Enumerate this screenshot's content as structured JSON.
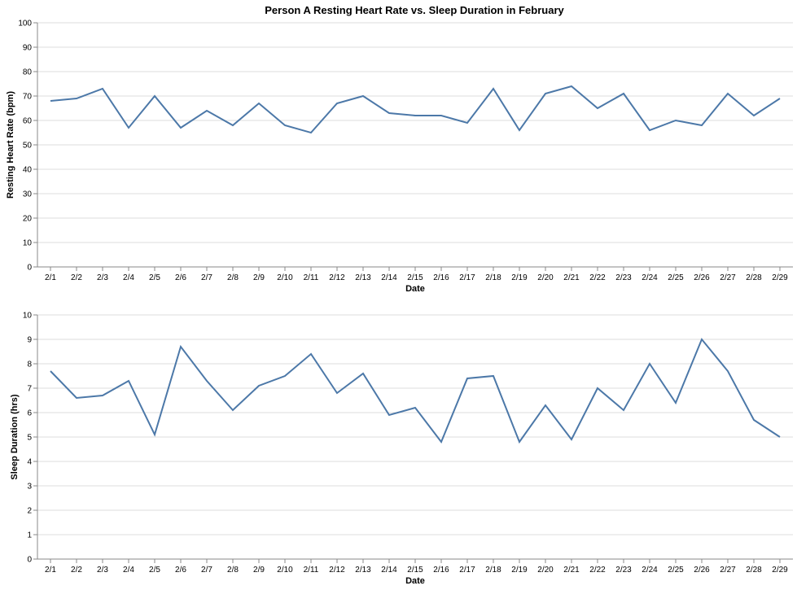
{
  "chart_data": {
    "title": "Person A Resting Heart Rate vs. Sleep Duration in February",
    "series_color": "#4c78a8",
    "charts": [
      {
        "type": "line",
        "xlabel": "Date",
        "ylabel": "Resting Heart Rate (bpm)",
        "ylim": [
          0,
          100
        ],
        "yticks": [
          "0",
          "10",
          "20",
          "30",
          "40",
          "50",
          "60",
          "70",
          "80",
          "90",
          "100"
        ],
        "grid": true,
        "categories": [
          "2/1",
          "2/2",
          "2/3",
          "2/4",
          "2/5",
          "2/6",
          "2/7",
          "2/8",
          "2/9",
          "2/10",
          "2/11",
          "2/12",
          "2/13",
          "2/14",
          "2/15",
          "2/16",
          "2/17",
          "2/18",
          "2/19",
          "2/20",
          "2/21",
          "2/22",
          "2/23",
          "2/24",
          "2/25",
          "2/26",
          "2/27",
          "2/28",
          "2/29"
        ],
        "values": [
          68,
          69,
          73,
          57,
          70,
          57,
          64,
          58,
          67,
          58,
          55,
          67,
          70,
          63,
          62,
          62,
          59,
          73,
          56,
          71,
          74,
          65,
          71,
          56,
          60,
          58,
          71,
          62,
          69
        ]
      },
      {
        "type": "line",
        "xlabel": "Date",
        "ylabel": "Sleep Duration (hrs)",
        "ylim": [
          0,
          10
        ],
        "yticks": [
          "0",
          "1",
          "2",
          "3",
          "4",
          "5",
          "6",
          "7",
          "8",
          "9",
          "10"
        ],
        "grid": true,
        "categories": [
          "2/1",
          "2/2",
          "2/3",
          "2/4",
          "2/5",
          "2/6",
          "2/7",
          "2/8",
          "2/9",
          "2/10",
          "2/11",
          "2/12",
          "2/13",
          "2/14",
          "2/15",
          "2/16",
          "2/17",
          "2/18",
          "2/19",
          "2/20",
          "2/21",
          "2/22",
          "2/23",
          "2/24",
          "2/25",
          "2/26",
          "2/27",
          "2/28",
          "2/29"
        ],
        "values": [
          7.7,
          6.6,
          6.7,
          7.3,
          5.1,
          8.7,
          7.3,
          6.1,
          7.1,
          7.5,
          8.4,
          6.8,
          7.6,
          5.9,
          6.2,
          4.8,
          7.4,
          7.5,
          4.8,
          6.3,
          4.9,
          7.0,
          6.1,
          8.0,
          6.4,
          9.0,
          7.7,
          5.7,
          5.0
        ]
      }
    ]
  }
}
